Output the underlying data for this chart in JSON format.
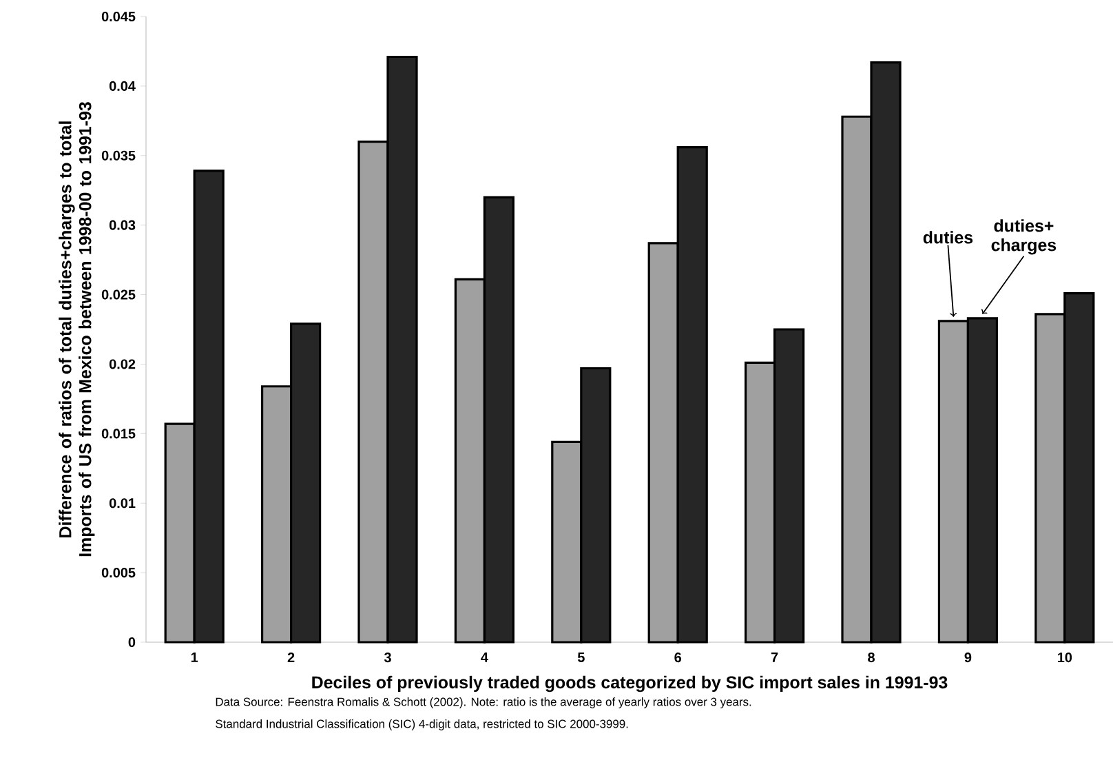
{
  "chart_data": {
    "type": "bar",
    "xlabel": "Deciles of previously traded goods categorized by SIC import sales in 1991-93",
    "ylabel": "Difference of ratios of total duties+charges to total Imports of US from Mexico between 1998-00 to 1991-93",
    "categories": [
      "1",
      "2",
      "3",
      "4",
      "5",
      "6",
      "7",
      "8",
      "9",
      "10"
    ],
    "series": [
      {
        "name": "duties",
        "color": "#a0a0a0",
        "values": [
          0.0157,
          0.0184,
          0.036,
          0.0261,
          0.0144,
          0.0287,
          0.0201,
          0.0378,
          0.0231,
          0.0236
        ]
      },
      {
        "name": "duties+ charges",
        "color": "#262626",
        "values": [
          0.0339,
          0.0229,
          0.0421,
          0.032,
          0.0197,
          0.0356,
          0.0225,
          0.0417,
          0.0233,
          0.0251
        ]
      }
    ],
    "ylim": [
      0,
      0.045
    ],
    "yticks": [
      0,
      0.005,
      0.01,
      0.015,
      0.02,
      0.025,
      0.03,
      0.035,
      0.04,
      0.045
    ],
    "annotations": [
      "Data Source: Feenstra Romalis & Schott (2002). Note: ratio is the average of yearly ratios over 3 years.",
      "Standard Industrial Classification (SIC) 4-digit data, restricted to SIC 2000-3999."
    ]
  }
}
